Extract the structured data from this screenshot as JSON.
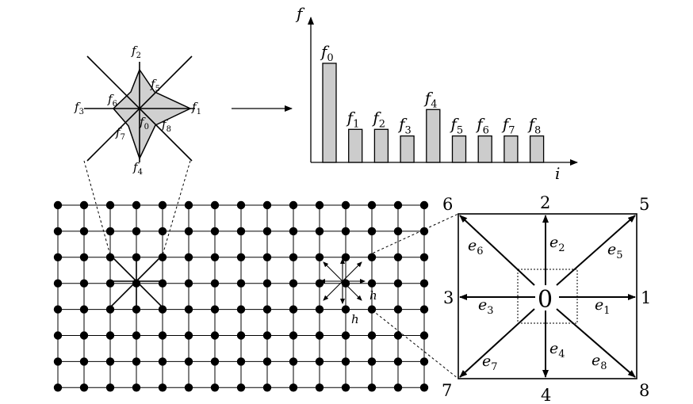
{
  "fig": {
    "star_labels": {
      "f2": [
        "f",
        "2"
      ],
      "f5": [
        "f",
        "5"
      ],
      "f6": [
        "f",
        "6"
      ],
      "f3": [
        "f",
        "3"
      ],
      "f1": [
        "f",
        "1"
      ],
      "f0": [
        "f",
        "0"
      ],
      "f8": [
        "f",
        "8"
      ],
      "f7": [
        "f",
        "7"
      ],
      "f4": [
        "f",
        "4"
      ]
    },
    "histogram": {
      "y_label": "f",
      "x_label": "i",
      "bars": [
        {
          "name": "f",
          "sub": "0",
          "value": 3.0
        },
        {
          "name": "f",
          "sub": "1",
          "value": 1.0
        },
        {
          "name": "f",
          "sub": "2",
          "value": 1.0
        },
        {
          "name": "f",
          "sub": "3",
          "value": 0.8
        },
        {
          "name": "f",
          "sub": "4",
          "value": 1.6
        },
        {
          "name": "f",
          "sub": "5",
          "value": 0.8
        },
        {
          "name": "f",
          "sub": "6",
          "value": 0.8
        },
        {
          "name": "f",
          "sub": "7",
          "value": 0.8
        },
        {
          "name": "f",
          "sub": "8",
          "value": 0.8
        }
      ]
    },
    "lattice": {
      "cols": 15,
      "rows": 8,
      "spacing_label": "h"
    },
    "cell": {
      "center": "0",
      "corners": {
        "top_left": "6",
        "top": "2",
        "top_right": "5",
        "left": "3",
        "right": "1",
        "bottom_left": "7",
        "bottom": "4",
        "bottom_right": "8"
      },
      "vectors": {
        "e1": [
          "e",
          "1"
        ],
        "e2": [
          "e",
          "2"
        ],
        "e3": [
          "e",
          "3"
        ],
        "e4": [
          "e",
          "4"
        ],
        "e5": [
          "e",
          "5"
        ],
        "e6": [
          "e",
          "6"
        ],
        "e7": [
          "e",
          "7"
        ],
        "e8": [
          "e",
          "8"
        ]
      }
    }
  }
}
